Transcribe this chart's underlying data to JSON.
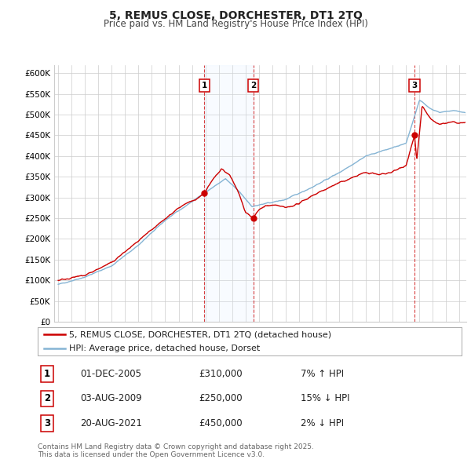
{
  "title": "5, REMUS CLOSE, DORCHESTER, DT1 2TQ",
  "subtitle": "Price paid vs. HM Land Registry's House Price Index (HPI)",
  "ylabel_ticks": [
    "£0",
    "£50K",
    "£100K",
    "£150K",
    "£200K",
    "£250K",
    "£300K",
    "£350K",
    "£400K",
    "£450K",
    "£500K",
    "£550K",
    "£600K"
  ],
  "ytick_values": [
    0,
    50000,
    100000,
    150000,
    200000,
    250000,
    300000,
    350000,
    400000,
    450000,
    500000,
    550000,
    600000
  ],
  "xlim_start": 1994.7,
  "xlim_end": 2025.5,
  "ylim_min": 0,
  "ylim_max": 620000,
  "legend_line1": "5, REMUS CLOSE, DORCHESTER, DT1 2TQ (detached house)",
  "legend_line2": "HPI: Average price, detached house, Dorset",
  "transaction_labels": [
    "1",
    "2",
    "3"
  ],
  "transaction_dates": [
    2005.92,
    2009.58,
    2021.63
  ],
  "transaction_prices": [
    310000,
    250000,
    450000
  ],
  "transaction_info": [
    "01-DEC-2005",
    "03-AUG-2009",
    "20-AUG-2021"
  ],
  "transaction_pct": [
    "7% ↑ HPI",
    "15% ↓ HPI",
    "2% ↓ HPI"
  ],
  "footer_line1": "Contains HM Land Registry data © Crown copyright and database right 2025.",
  "footer_line2": "This data is licensed under the Open Government Licence v3.0.",
  "line_color_red": "#cc0000",
  "line_color_blue": "#85b4d4",
  "shade_color": "#ddeeff",
  "grid_color": "#cccccc",
  "background_color": "#ffffff",
  "title_fontsize": 10,
  "subtitle_fontsize": 8.5,
  "tick_fontsize": 7.5,
  "legend_fontsize": 8,
  "table_fontsize": 8.5,
  "footer_fontsize": 6.5
}
